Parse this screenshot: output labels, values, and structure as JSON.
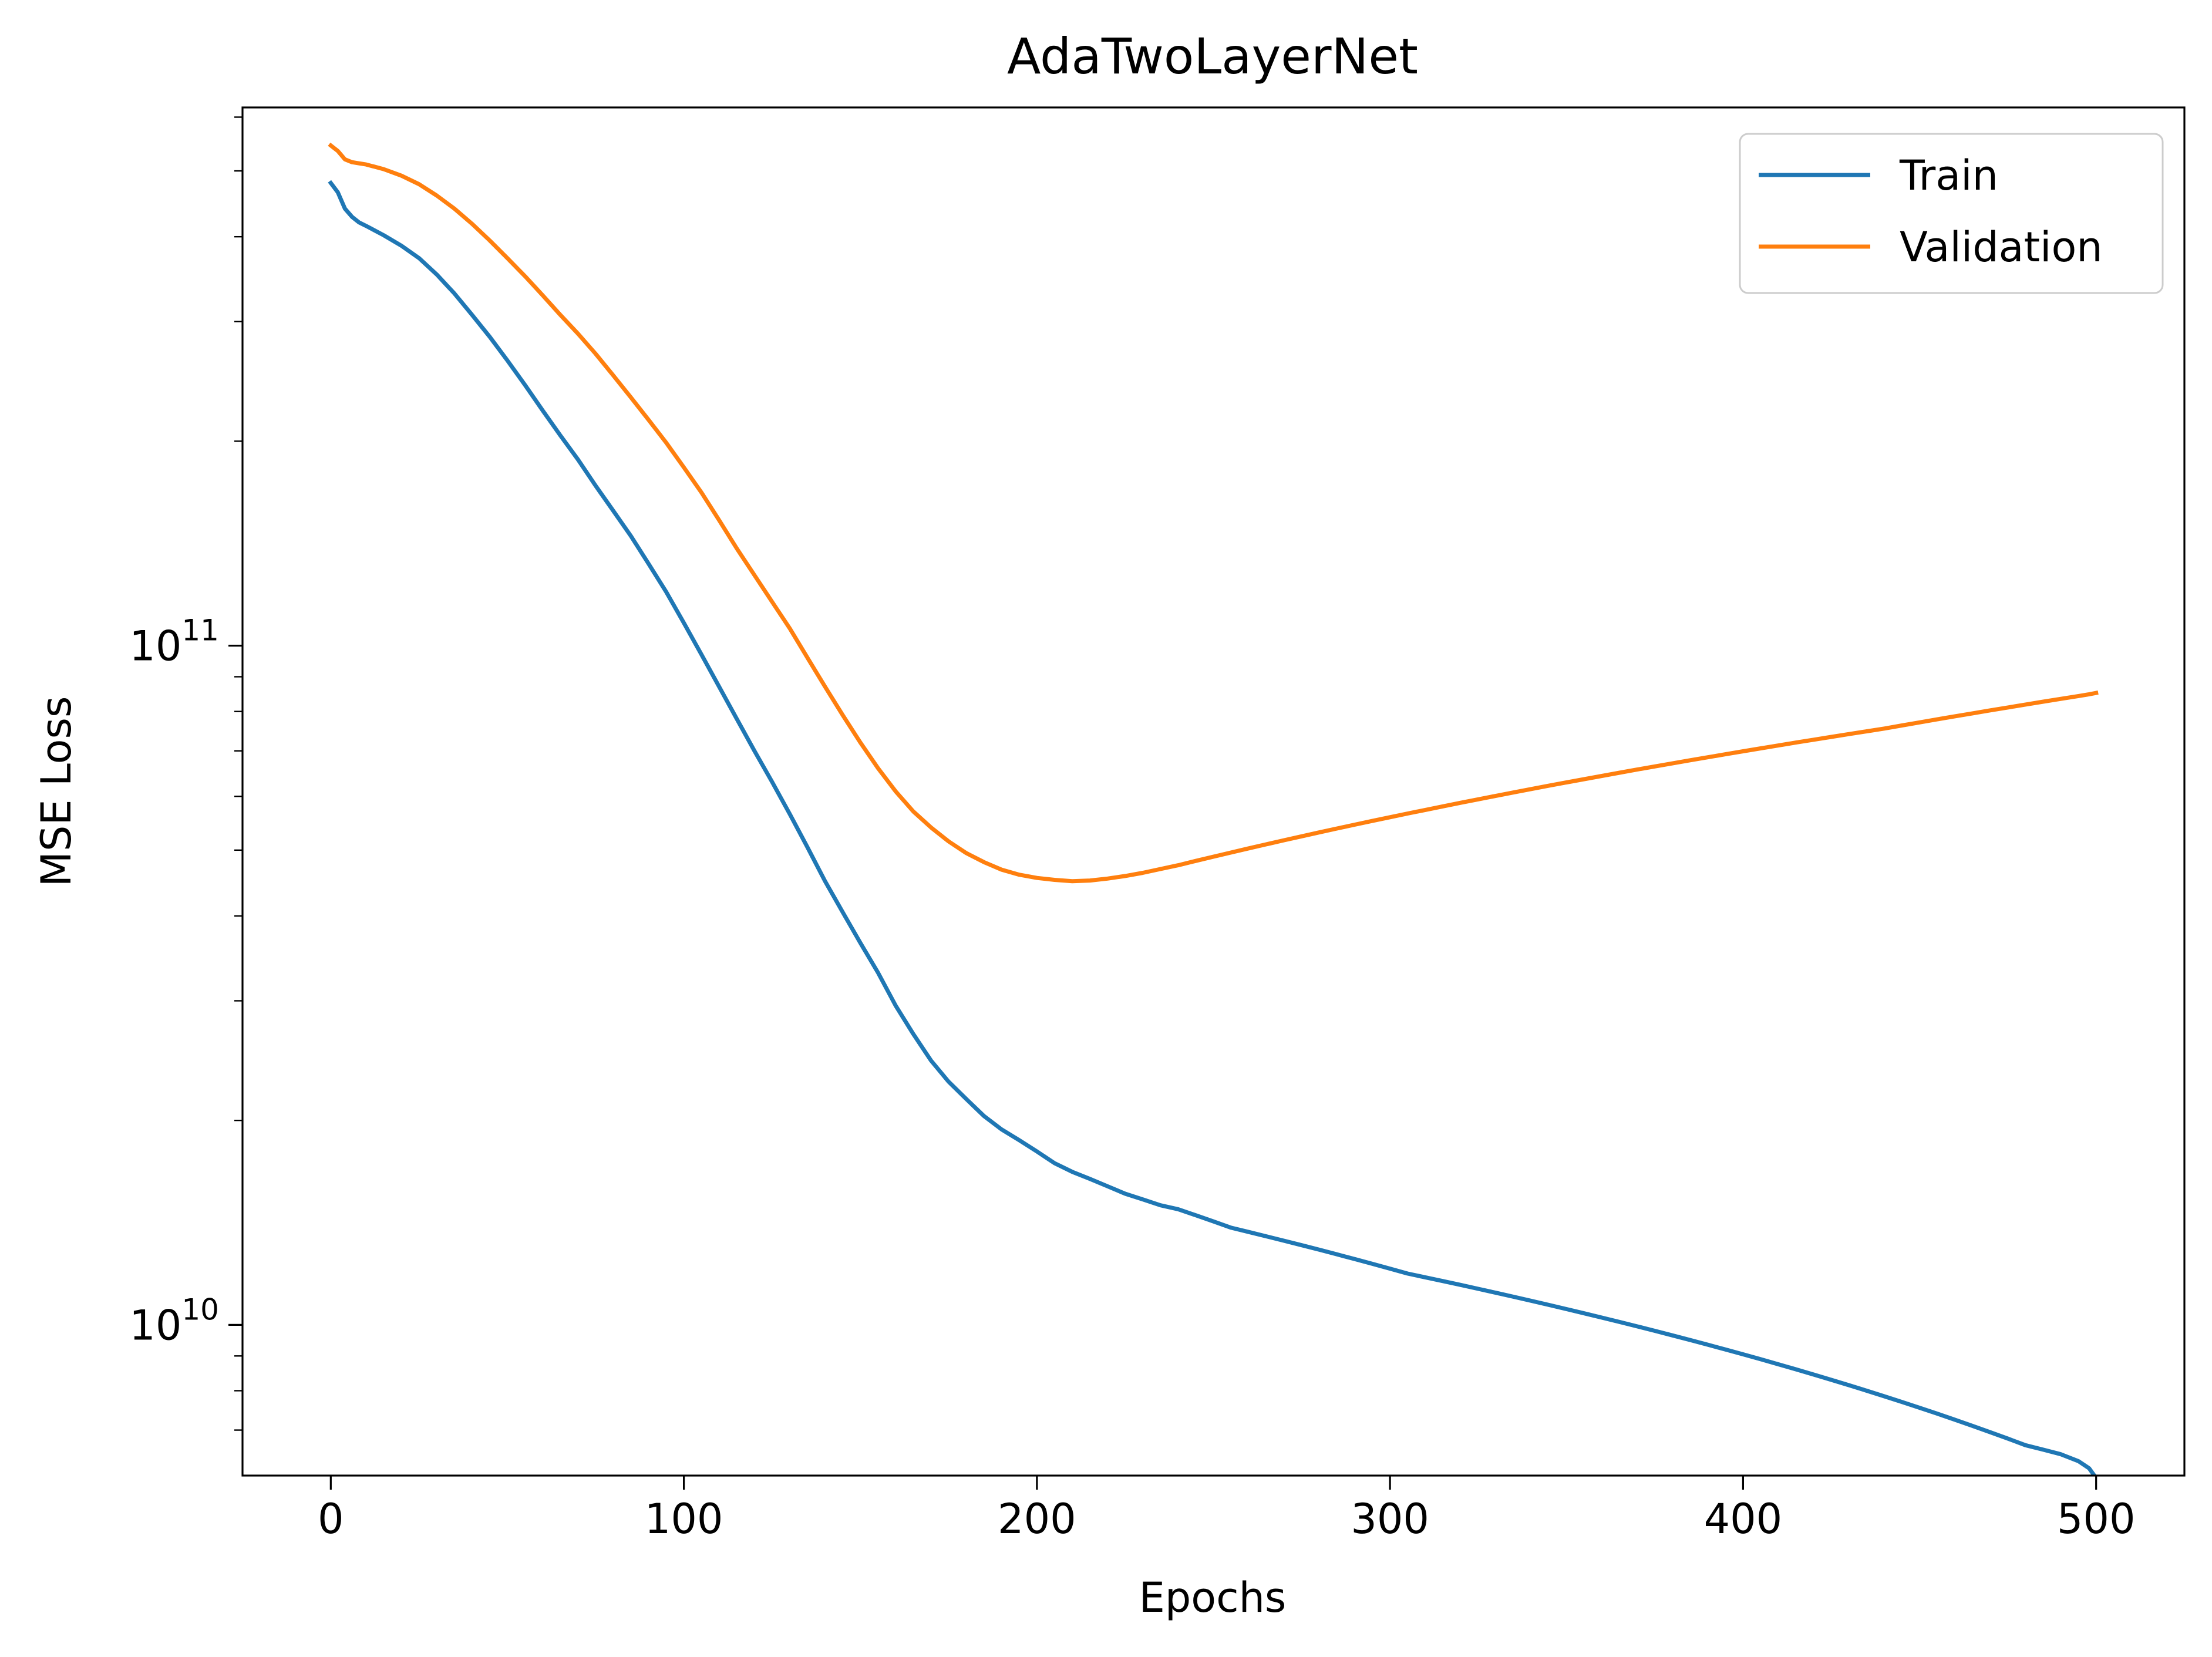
{
  "chart_data": {
    "type": "line",
    "title": "AdaTwoLayerNet",
    "xlabel": "Epochs",
    "ylabel": "MSE Loss",
    "x_scale": "linear",
    "y_scale": "log",
    "xlim": [
      -25,
      525
    ],
    "ylim": [
      6000000000,
      620000000000
    ],
    "x_ticks": [
      0,
      100,
      200,
      300,
      400,
      500
    ],
    "x_tick_labels": [
      "0",
      "100",
      "200",
      "300",
      "400",
      "500"
    ],
    "y_major_ticks": [
      {
        "value": 10000000000,
        "base": "10",
        "exponent": "10"
      },
      {
        "value": 100000000000,
        "base": "10",
        "exponent": "11"
      }
    ],
    "y_minor_ticks": [
      7000000000,
      8000000000,
      9000000000,
      20000000000,
      30000000000,
      40000000000,
      50000000000,
      60000000000,
      70000000000,
      80000000000,
      90000000000,
      200000000000,
      300000000000,
      400000000000,
      500000000000,
      600000000000
    ],
    "grid": false,
    "legend_position": "top-right",
    "series": [
      {
        "name": "Train",
        "color": "#1f77b4",
        "x": [
          0,
          2,
          4,
          6,
          8,
          10,
          15,
          20,
          25,
          30,
          35,
          40,
          45,
          50,
          55,
          60,
          65,
          70,
          75,
          80,
          85,
          90,
          95,
          100,
          105,
          110,
          115,
          120,
          125,
          130,
          135,
          140,
          145,
          150,
          155,
          160,
          165,
          170,
          175,
          180,
          185,
          190,
          195,
          200,
          205,
          210,
          215,
          220,
          225,
          230,
          235,
          240,
          245,
          250,
          255,
          260,
          265,
          270,
          275,
          280,
          285,
          290,
          295,
          300,
          305,
          310,
          315,
          320,
          325,
          330,
          335,
          340,
          345,
          350,
          355,
          360,
          365,
          370,
          375,
          380,
          385,
          390,
          395,
          400,
          405,
          410,
          415,
          420,
          425,
          430,
          435,
          440,
          445,
          450,
          455,
          460,
          465,
          470,
          475,
          480,
          485,
          490,
          495,
          498,
          500
        ],
        "values": [
          480000000000,
          465000000000,
          440000000000,
          428000000000,
          420000000000,
          415000000000,
          402000000000,
          388000000000,
          372000000000,
          352000000000,
          330000000000,
          307000000000,
          285000000000,
          263000000000,
          242000000000,
          222000000000,
          204000000000,
          188000000000,
          172000000000,
          158000000000,
          145000000000,
          132000000000,
          120000000000,
          108000000000,
          97000000000,
          87000000000,
          78000000000,
          70000000000,
          63000000000,
          56500000000,
          50500000000,
          45000000000,
          40500000000,
          36500000000,
          33000000000,
          29500000000,
          26800000000,
          24500000000,
          22800000000,
          21500000000,
          20300000000,
          19400000000,
          18700000000,
          18000000000,
          17300000000,
          16800000000,
          16400000000,
          16000000000,
          15600000000,
          15300000000,
          15000000000,
          14800000000,
          14500000000,
          14200000000,
          13900000000,
          13700000000,
          13500000000,
          13300000000,
          13100000000,
          12900000000,
          12700000000,
          12500000000,
          12300000000,
          12100000000,
          11900000000,
          11750000000,
          11600000000,
          11450000000,
          11300000000,
          11150000000,
          11000000000,
          10850000000,
          10700000000,
          10550000000,
          10400000000,
          10250000000,
          10100000000,
          9950000000,
          9800000000,
          9650000000,
          9500000000,
          9350000000,
          9200000000,
          9050000000,
          8900000000,
          8750000000,
          8600000000,
          8450000000,
          8300000000,
          8150000000,
          8000000000,
          7850000000,
          7700000000,
          7550000000,
          7400000000,
          7250000000,
          7100000000,
          6950000000,
          6800000000,
          6650000000,
          6550000000,
          6450000000,
          6300000000,
          6150000000,
          5950000000
        ]
      },
      {
        "name": "Validation",
        "color": "#ff7f0e",
        "x": [
          0,
          2,
          4,
          6,
          8,
          10,
          15,
          20,
          25,
          30,
          35,
          40,
          45,
          50,
          55,
          60,
          65,
          70,
          75,
          80,
          85,
          90,
          95,
          100,
          105,
          110,
          115,
          120,
          125,
          130,
          135,
          140,
          145,
          150,
          155,
          160,
          165,
          170,
          175,
          180,
          185,
          190,
          195,
          200,
          205,
          210,
          215,
          220,
          225,
          230,
          235,
          240,
          245,
          250,
          255,
          260,
          265,
          270,
          275,
          280,
          285,
          290,
          295,
          300,
          305,
          310,
          315,
          320,
          325,
          330,
          335,
          340,
          345,
          350,
          355,
          360,
          365,
          370,
          375,
          380,
          385,
          390,
          395,
          400,
          405,
          410,
          415,
          420,
          425,
          430,
          435,
          440,
          445,
          450,
          455,
          460,
          465,
          470,
          475,
          480,
          485,
          490,
          495,
          498,
          500
        ],
        "values": [
          545000000000,
          535000000000,
          520000000000,
          515000000000,
          513000000000,
          511000000000,
          503000000000,
          492000000000,
          478000000000,
          460000000000,
          440000000000,
          418000000000,
          395000000000,
          372000000000,
          350000000000,
          328000000000,
          307000000000,
          288000000000,
          269000000000,
          250000000000,
          232000000000,
          215000000000,
          199000000000,
          183000000000,
          168000000000,
          153000000000,
          139000000000,
          127000000000,
          116000000000,
          106000000000,
          96000000000,
          87000000000,
          79000000000,
          72000000000,
          66000000000,
          61000000000,
          57000000000,
          54000000000,
          51500000000,
          49500000000,
          48000000000,
          46800000000,
          46000000000,
          45500000000,
          45200000000,
          45000000000,
          45100000000,
          45400000000,
          45800000000,
          46300000000,
          46900000000,
          47500000000,
          48200000000,
          48900000000,
          49600000000,
          50300000000,
          51000000000,
          51700000000,
          52400000000,
          53100000000,
          53800000000,
          54500000000,
          55200000000,
          55900000000,
          56600000000,
          57300000000,
          58000000000,
          58700000000,
          59400000000,
          60100000000,
          60800000000,
          61500000000,
          62200000000,
          62900000000,
          63600000000,
          64300000000,
          65000000000,
          65700000000,
          66400000000,
          67100000000,
          67800000000,
          68500000000,
          69200000000,
          69900000000,
          70600000000,
          71300000000,
          72000000000,
          72700000000,
          73400000000,
          74100000000,
          74800000000,
          75500000000,
          76300000000,
          77100000000,
          77900000000,
          78700000000,
          79500000000,
          80300000000,
          81100000000,
          81900000000,
          82700000000,
          83500000000,
          84300000000,
          84800000000,
          85200000000
        ]
      }
    ]
  }
}
